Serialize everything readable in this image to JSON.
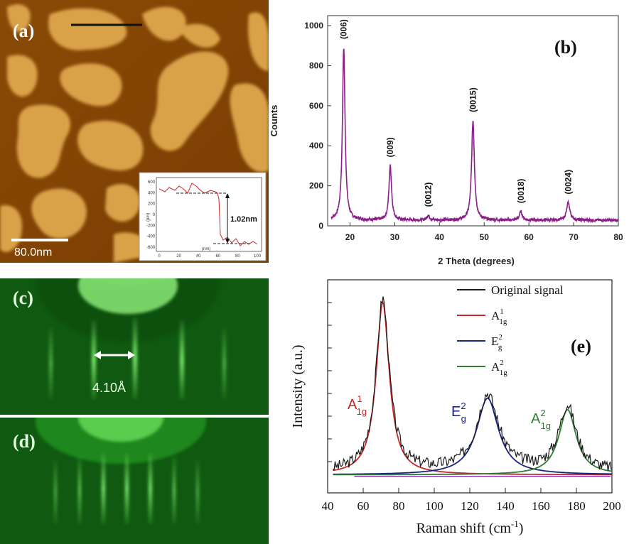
{
  "panel_a": {
    "label": "(a)",
    "scale_bar_label": "80.0nm",
    "inset": {
      "ylabel": "(pm)",
      "xlabel": "(nm)",
      "step_label": "1.02nm",
      "yticks": [
        600,
        400,
        200,
        0,
        -200,
        -400,
        -600
      ],
      "xticks": [
        0,
        20,
        40,
        60,
        80,
        100
      ]
    }
  },
  "panel_c": {
    "label": "(c)",
    "spacing_label": "4.10Å"
  },
  "panel_d": {
    "label": "(d)"
  },
  "chart_data": [
    {
      "panel": "(b)",
      "type": "line",
      "xlabel": "2 Theta (degrees)",
      "ylabel": "Counts",
      "xlim": [
        15,
        80
      ],
      "ylim": [
        0,
        1050
      ],
      "xticks": [
        20,
        30,
        40,
        50,
        60,
        70,
        80
      ],
      "yticks": [
        0,
        200,
        400,
        600,
        800,
        1000
      ],
      "color": "#8b1f87",
      "baseline": 28,
      "peaks": [
        {
          "label": "(006)",
          "x": 18.6,
          "y": 890,
          "width": 0.35
        },
        {
          "label": "(009)",
          "x": 29.0,
          "y": 300,
          "width": 0.35
        },
        {
          "label": "(0012)",
          "x": 37.5,
          "y": 52,
          "width": 0.35
        },
        {
          "label": "(0015)",
          "x": 47.5,
          "y": 525,
          "width": 0.38
        },
        {
          "label": "(0018)",
          "x": 58.2,
          "y": 70,
          "width": 0.4
        },
        {
          "label": "(0024)",
          "x": 68.8,
          "y": 115,
          "width": 0.45
        }
      ]
    },
    {
      "panel": "(e)",
      "type": "line",
      "xlabel": "Raman shift (cm",
      "xlabel_sup": "-1",
      "xlabel_end": ")",
      "ylabel": "Intensity (a.u.)",
      "xlim": [
        40,
        200
      ],
      "ylim": [
        0,
        1
      ],
      "xticks": [
        40,
        60,
        80,
        100,
        120,
        140,
        160,
        180,
        200
      ],
      "legend_position": "top-right",
      "series": [
        {
          "name": "Original signal",
          "color": "#1a1a1a"
        },
        {
          "name": "A",
          "sup": "1",
          "sub": "1g",
          "color": "#c62828",
          "center": 71,
          "amplitude": 0.9,
          "width": 4.5
        },
        {
          "name": "E",
          "sup": "2",
          "sub": "g",
          "color": "#1a237e",
          "center": 130,
          "amplitude": 0.4,
          "width": 7.5
        },
        {
          "name": "A",
          "sup": "2",
          "sub": "1g",
          "color": "#2e7d32",
          "center": 175,
          "amplitude": 0.34,
          "width": 6
        }
      ],
      "background": 0.02
    }
  ],
  "labels": {
    "b": "(b)",
    "e": "(e)"
  }
}
